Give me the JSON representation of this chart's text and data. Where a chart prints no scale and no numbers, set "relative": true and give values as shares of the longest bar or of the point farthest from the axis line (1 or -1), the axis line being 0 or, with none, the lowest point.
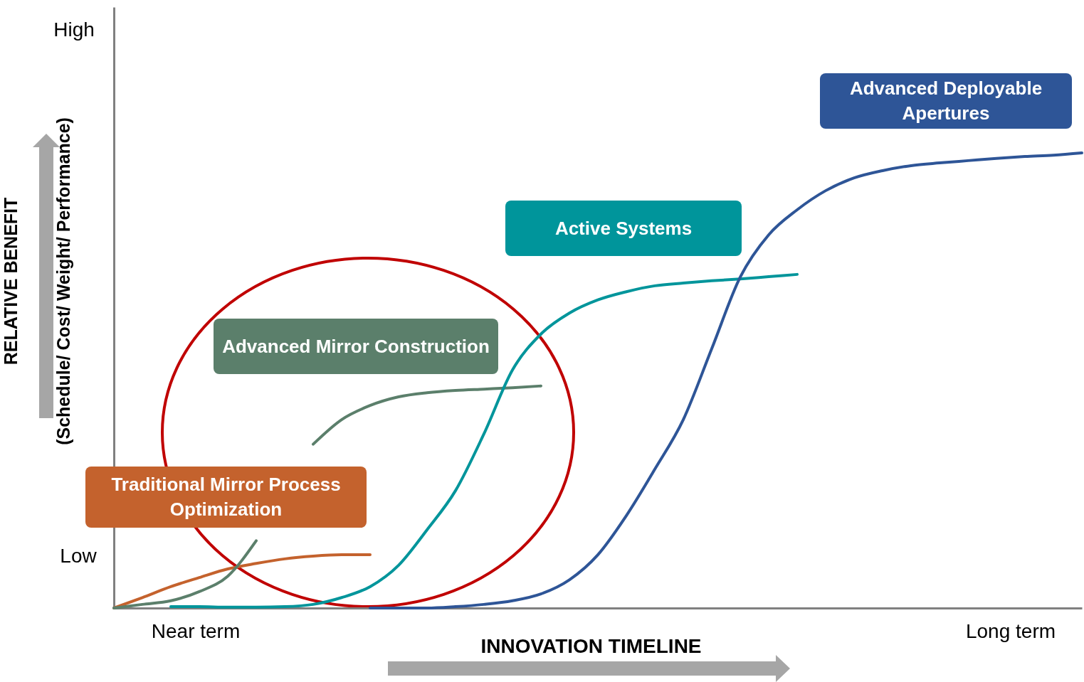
{
  "chart_data": {
    "type": "line",
    "relative": true,
    "xlabel": "INNOVATION TIMELINE",
    "ylabel": "RELATIVE BENEFIT\n(Schedule/ Cost/ Weight/ Performance)",
    "annotations": [
      "High",
      "Low",
      "Near term",
      "Long term"
    ],
    "categories": [
      null,
      null,
      null,
      null,
      null,
      null,
      null,
      null,
      null,
      null,
      null,
      null,
      null,
      null,
      null,
      null,
      null,
      null,
      null,
      null,
      null,
      null,
      null,
      null,
      null,
      null,
      null,
      null,
      null,
      null,
      null,
      null,
      null,
      null,
      null
    ],
    "series": [
      {
        "name": "Traditional Mirror Process Optimization",
        "color": "#c4622d",
        "values": [
          0,
          0.023,
          0.047,
          0.067,
          0.086,
          0.098,
          0.108,
          0.114,
          0.117,
          0.117,
          null,
          null,
          null,
          null,
          null,
          null,
          null,
          null,
          null,
          null,
          null,
          null,
          null,
          null,
          null,
          null,
          null,
          null,
          null,
          null,
          null,
          null,
          null,
          null,
          null
        ]
      },
      {
        "name": "Advanced Mirror Construction",
        "color": "#5b7f6b",
        "values": [
          0,
          0.008,
          0.016,
          0.036,
          0.07,
          0.148,
          null,
          0.36,
          0.414,
          0.445,
          0.464,
          0.473,
          0.478,
          0.481,
          0.484,
          0.488,
          null,
          null,
          null,
          null,
          null,
          null,
          null,
          null,
          null,
          null,
          null,
          null,
          null,
          null,
          null,
          null,
          null,
          null,
          null
        ]
      },
      {
        "name": "Active Systems",
        "color": "#00959b",
        "values": [
          null,
          null,
          0.003,
          0.003,
          0.002,
          0.002,
          0.003,
          0.008,
          0.023,
          0.047,
          0.094,
          0.172,
          0.258,
          0.383,
          0.523,
          0.602,
          0.648,
          0.677,
          0.695,
          0.708,
          0.714,
          0.719,
          0.723,
          0.728,
          0.733,
          null,
          null,
          null,
          null,
          null,
          null,
          null,
          null,
          null,
          null
        ]
      },
      {
        "name": "Advanced Deployable Apertures",
        "color": "#2e5597",
        "values": [
          null,
          null,
          null,
          null,
          null,
          null,
          null,
          null,
          null,
          0,
          0,
          0,
          0.003,
          0.008,
          0.016,
          0.031,
          0.062,
          0.117,
          0.203,
          0.305,
          0.414,
          0.57,
          0.727,
          0.82,
          0.875,
          0.917,
          0.945,
          0.961,
          0.972,
          0.978,
          0.983,
          0.988,
          0.992,
          0.995,
          1
        ]
      }
    ],
    "grid": false
  }
}
